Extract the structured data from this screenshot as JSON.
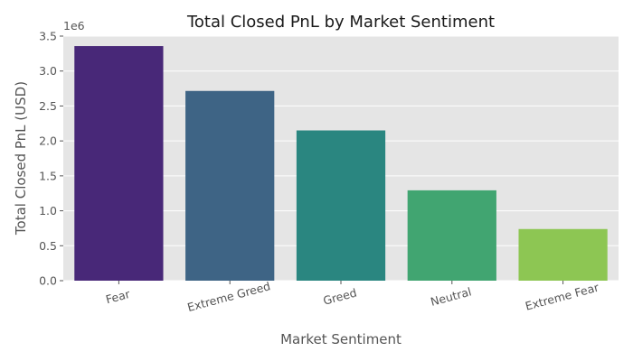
{
  "chart_data": {
    "type": "bar",
    "title": "Total Closed PnL by Market Sentiment",
    "xlabel": "Market Sentiment",
    "ylabel": "Total Closed PnL (USD)",
    "offset_text": "1e6",
    "categories": [
      "Fear",
      "Extreme Greed",
      "Greed",
      "Neutral",
      "Extreme Fear"
    ],
    "values": [
      3357155,
      2715171,
      2150129,
      1292921,
      739110
    ],
    "colors": [
      "#482878",
      "#3e6485",
      "#2a8680",
      "#41a571",
      "#8dc653"
    ],
    "ylim": [
      0,
      3500000
    ],
    "yticks": [
      0,
      500000,
      1000000,
      1500000,
      2000000,
      2500000,
      3000000,
      3500000
    ],
    "ytick_labels": [
      "0.0",
      "0.5",
      "1.0",
      "1.5",
      "2.0",
      "2.5",
      "3.0",
      "3.5"
    ],
    "xtick_rotation": 15,
    "grid": true,
    "background": "#e5e5e5"
  }
}
